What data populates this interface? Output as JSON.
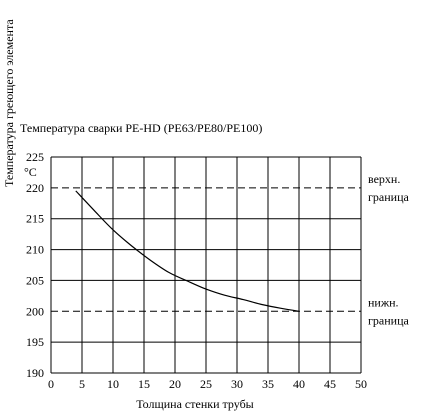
{
  "chart_data": {
    "type": "line",
    "title": "Температура сварки PE-HD (PE63/PE80/PE100)",
    "xlabel": "Толщина стенки трубы",
    "ylabel": "Температура греющего элемента",
    "yunit": "°C",
    "xlim": [
      0,
      50
    ],
    "ylim": [
      190,
      225
    ],
    "xticks": [
      0,
      5,
      10,
      15,
      20,
      25,
      30,
      35,
      40,
      45,
      50
    ],
    "yticks": [
      190,
      195,
      200,
      205,
      210,
      215,
      220,
      225
    ],
    "grid": true,
    "series": [
      {
        "x": [
          4,
          7,
          10,
          13,
          16,
          19,
          22,
          25,
          28,
          31,
          34,
          37,
          40
        ],
        "y": [
          219.5,
          216.3,
          213.2,
          210.6,
          208.3,
          206.3,
          204.9,
          203.6,
          202.6,
          201.9,
          201.1,
          200.5,
          200.0
        ]
      }
    ],
    "reference_lines": [
      {
        "y": 220,
        "label_line1": "верхн.",
        "label_line2": "граница"
      },
      {
        "y": 200,
        "label_line1": "нижн.",
        "label_line2": "граница"
      }
    ]
  }
}
